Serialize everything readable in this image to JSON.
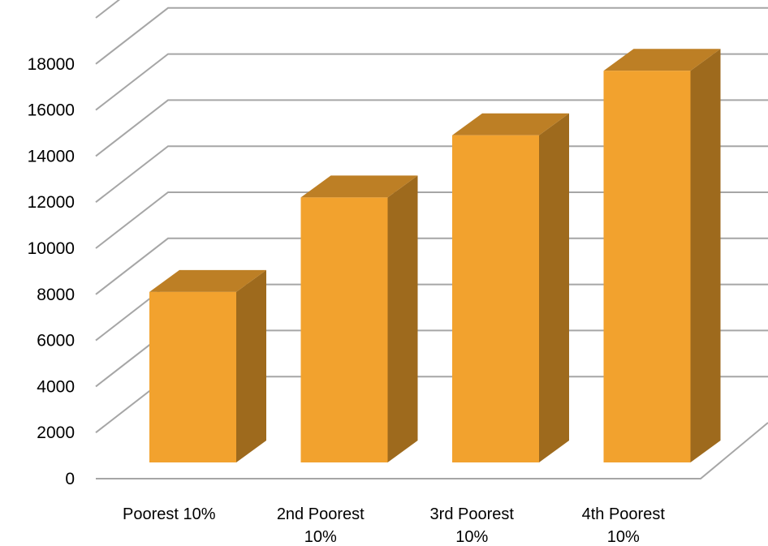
{
  "chart_data": {
    "type": "bar",
    "style": "3d-column",
    "title": "",
    "xlabel": "",
    "ylabel": "",
    "categories": [
      [
        "Poorest 10%"
      ],
      [
        "2nd Poorest",
        "10%"
      ],
      [
        "3rd Poorest",
        "10%"
      ],
      [
        "4th Poorest",
        "10%"
      ]
    ],
    "series": [
      {
        "values": [
          7400,
          11500,
          14200,
          17000
        ],
        "color": "#f2a22e"
      }
    ],
    "ylim": [
      0,
      20000
    ],
    "yticks": [
      0,
      2000,
      4000,
      6000,
      8000,
      10000,
      12000,
      14000,
      16000,
      18000
    ],
    "grid": true,
    "legend": "none",
    "colors": {
      "bar_front": "#f2a22e",
      "bar_side": "#9e6a1d",
      "bar_top": "#bd7f25",
      "gridline": "#a6a6a6"
    }
  }
}
